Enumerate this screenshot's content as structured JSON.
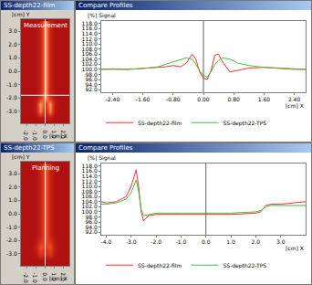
{
  "chart_data": [
    {
      "type": "heatmap",
      "title": "SS-depth22-film",
      "annotations": [
        "Measurement"
      ],
      "xlabel": "[cm] X",
      "ylabel": "[cm] Y",
      "x": [
        -2.5,
        -2.0,
        -1.5,
        -1.0,
        -0.5,
        0.0,
        0.5,
        1.0,
        1.5,
        2.0,
        2.5
      ],
      "y": [
        -3.5,
        -3.0,
        -2.5,
        -2.0,
        -1.5,
        -1.0,
        -0.5,
        0.0,
        0.5,
        1.0,
        1.5,
        2.0,
        2.5,
        3.0,
        3.5
      ],
      "z": [
        [
          0.3,
          0.3,
          0.3,
          0.3,
          0.35,
          0.35,
          0.35,
          0.3,
          0.3,
          0.3,
          0.3
        ],
        [
          0.3,
          0.3,
          0.3,
          0.35,
          0.9,
          0.5,
          0.9,
          0.35,
          0.3,
          0.3,
          0.3
        ],
        [
          0.3,
          0.3,
          0.3,
          0.4,
          1.0,
          0.6,
          1.0,
          0.4,
          0.3,
          0.3,
          0.3
        ],
        [
          0.3,
          0.3,
          0.3,
          0.35,
          0.6,
          1.0,
          0.6,
          0.35,
          0.3,
          0.3,
          0.3
        ],
        [
          0.3,
          0.3,
          0.3,
          0.3,
          0.45,
          1.0,
          0.45,
          0.3,
          0.3,
          0.3,
          0.3
        ],
        [
          0.3,
          0.3,
          0.3,
          0.3,
          0.45,
          1.0,
          0.45,
          0.3,
          0.3,
          0.3,
          0.3
        ],
        [
          0.3,
          0.3,
          0.3,
          0.3,
          0.45,
          1.0,
          0.45,
          0.3,
          0.3,
          0.3,
          0.3
        ],
        [
          0.3,
          0.3,
          0.3,
          0.3,
          0.45,
          1.0,
          0.45,
          0.3,
          0.3,
          0.3,
          0.3
        ],
        [
          0.3,
          0.3,
          0.3,
          0.3,
          0.45,
          1.0,
          0.45,
          0.3,
          0.3,
          0.3,
          0.3
        ],
        [
          0.3,
          0.3,
          0.3,
          0.3,
          0.45,
          1.0,
          0.45,
          0.3,
          0.3,
          0.3,
          0.3
        ],
        [
          0.3,
          0.3,
          0.3,
          0.3,
          0.45,
          1.0,
          0.45,
          0.3,
          0.3,
          0.3,
          0.3
        ],
        [
          0.3,
          0.3,
          0.3,
          0.3,
          0.45,
          1.0,
          0.45,
          0.3,
          0.3,
          0.3,
          0.3
        ],
        [
          0.3,
          0.3,
          0.3,
          0.3,
          0.45,
          1.0,
          0.45,
          0.3,
          0.3,
          0.3,
          0.3
        ],
        [
          0.3,
          0.3,
          0.3,
          0.3,
          0.45,
          1.0,
          0.45,
          0.3,
          0.3,
          0.3,
          0.3
        ],
        [
          0.3,
          0.3,
          0.3,
          0.3,
          0.45,
          1.0,
          0.45,
          0.3,
          0.3,
          0.3,
          0.3
        ]
      ],
      "zlim": [
        0,
        1
      ],
      "crosshair": {
        "x": 0.0,
        "y": -1.8
      },
      "xlim": [
        -2.6,
        2.6
      ],
      "ylim": [
        -3.9,
        3.9
      ],
      "xticks": [
        {
          "value": -2,
          "label": "-2.0"
        },
        {
          "value": -1,
          "label": "-1.0"
        },
        {
          "value": 0,
          "label": "0.0"
        },
        {
          "value": 1,
          "label": "1.0"
        },
        {
          "value": 2,
          "label": "2.0"
        }
      ],
      "yticks": [
        {
          "value": 3,
          "label": "3.0"
        },
        {
          "value": 2,
          "label": "2.0"
        },
        {
          "value": 1,
          "label": "1.0"
        },
        {
          "value": 0,
          "label": "0.0"
        },
        {
          "value": -1,
          "label": "-1.0"
        },
        {
          "value": -2,
          "label": "-2.0"
        },
        {
          "value": -3,
          "label": "-3.0"
        }
      ],
      "grid": false
    },
    {
      "type": "line",
      "title": "Compare Profiles",
      "xlabel": "[cm] X",
      "ylabel": "[%] Signal",
      "x": [
        -2.7,
        -2.4,
        -2.0,
        -1.6,
        -1.2,
        -1.0,
        -0.8,
        -0.6,
        -0.45,
        -0.3,
        -0.2,
        -0.1,
        0.0,
        0.1,
        0.2,
        0.3,
        0.4,
        0.5,
        0.7,
        0.9,
        1.2,
        1.6,
        2.0,
        2.4,
        2.7
      ],
      "series": [
        {
          "name": "SS-depth22-film",
          "color": "#ff3030",
          "values": [
            100.0,
            100.2,
            100.0,
            100.3,
            100.6,
            101.0,
            101.5,
            101.0,
            102.5,
            106.0,
            104.0,
            99.0,
            96.5,
            96.0,
            99.5,
            105.5,
            106.0,
            103.0,
            99.0,
            99.5,
            100.5,
            100.8,
            100.3,
            100.0,
            100.0
          ]
        },
        {
          "name": "SS-depth22-TPS",
          "color": "#40c040",
          "values": [
            100.0,
            100.0,
            100.0,
            100.3,
            101.0,
            102.0,
            103.0,
            104.0,
            104.5,
            104.0,
            102.0,
            99.5,
            97.5,
            97.0,
            99.0,
            102.0,
            103.5,
            104.5,
            104.0,
            102.5,
            101.5,
            100.8,
            100.5,
            100.2,
            100.0
          ]
        }
      ],
      "cursor": 0.0,
      "xlim": [
        -2.7,
        2.7
      ],
      "ylim": [
        91,
        119
      ],
      "xticks": [
        {
          "value": -2.4,
          "label": "-2.40"
        },
        {
          "value": -1.6,
          "label": "-1.60"
        },
        {
          "value": -0.8,
          "label": "-0.80"
        },
        {
          "value": 0,
          "label": "0.00"
        },
        {
          "value": 0.8,
          "label": "0.80"
        },
        {
          "value": 1.6,
          "label": "1.60"
        },
        {
          "value": 2.4,
          "label": "2.40"
        }
      ],
      "yticks": [
        {
          "value": 92,
          "label": "92.0"
        },
        {
          "value": 94,
          "label": "94.0"
        },
        {
          "value": 96,
          "label": "96.0"
        },
        {
          "value": 98,
          "label": "98.0"
        },
        {
          "value": 100,
          "label": "100.0"
        },
        {
          "value": 102,
          "label": "102.0"
        },
        {
          "value": 104,
          "label": "104.0"
        },
        {
          "value": 106,
          "label": "106.0"
        },
        {
          "value": 108,
          "label": "108.0"
        },
        {
          "value": 110,
          "label": "110.0"
        },
        {
          "value": 112,
          "label": "112.0"
        },
        {
          "value": 114,
          "label": "114.0"
        },
        {
          "value": 116,
          "label": "116.0"
        },
        {
          "value": 118,
          "label": "118.0"
        }
      ],
      "grid": false,
      "legend": "bottom"
    },
    {
      "type": "heatmap",
      "title": "SS-depth22-TPS",
      "annotations": [
        "Planning"
      ],
      "xlabel": "[cm] X",
      "ylabel": "[cm] Y",
      "x": [
        -2.5,
        -2.0,
        -1.5,
        -1.0,
        -0.5,
        0.0,
        0.5,
        1.0,
        1.5,
        2.0,
        2.5
      ],
      "y": [
        -3.5,
        -3.0,
        -2.5,
        -2.0,
        -1.5,
        -1.0,
        -0.5,
        0.0,
        0.5,
        1.0,
        1.5,
        2.0,
        2.5,
        3.0,
        3.5
      ],
      "z": [
        [
          0.3,
          0.3,
          0.3,
          0.3,
          0.3,
          0.3,
          0.3,
          0.3,
          0.3,
          0.3,
          0.3
        ],
        [
          0.3,
          0.3,
          0.3,
          0.35,
          0.6,
          0.55,
          0.6,
          0.35,
          0.3,
          0.3,
          0.3
        ],
        [
          0.3,
          0.3,
          0.3,
          0.4,
          0.75,
          0.7,
          0.75,
          0.4,
          0.3,
          0.3,
          0.3
        ],
        [
          0.3,
          0.3,
          0.3,
          0.35,
          0.55,
          0.8,
          0.55,
          0.35,
          0.3,
          0.3,
          0.3
        ],
        [
          0.3,
          0.3,
          0.3,
          0.3,
          0.45,
          0.8,
          0.45,
          0.3,
          0.3,
          0.3,
          0.3
        ],
        [
          0.3,
          0.3,
          0.3,
          0.3,
          0.45,
          0.8,
          0.45,
          0.3,
          0.3,
          0.3,
          0.3
        ],
        [
          0.3,
          0.3,
          0.3,
          0.3,
          0.45,
          0.8,
          0.45,
          0.3,
          0.3,
          0.3,
          0.3
        ],
        [
          0.3,
          0.3,
          0.3,
          0.3,
          0.45,
          0.8,
          0.45,
          0.3,
          0.3,
          0.3,
          0.3
        ],
        [
          0.3,
          0.3,
          0.3,
          0.3,
          0.45,
          0.8,
          0.45,
          0.3,
          0.3,
          0.3,
          0.3
        ],
        [
          0.3,
          0.3,
          0.3,
          0.3,
          0.45,
          0.8,
          0.45,
          0.3,
          0.3,
          0.3,
          0.3
        ],
        [
          0.3,
          0.3,
          0.3,
          0.3,
          0.45,
          0.8,
          0.45,
          0.3,
          0.3,
          0.3,
          0.3
        ],
        [
          0.3,
          0.3,
          0.3,
          0.3,
          0.45,
          0.8,
          0.45,
          0.3,
          0.3,
          0.3,
          0.3
        ],
        [
          0.3,
          0.3,
          0.3,
          0.3,
          0.45,
          0.8,
          0.45,
          0.3,
          0.3,
          0.3,
          0.3
        ],
        [
          0.3,
          0.3,
          0.3,
          0.3,
          0.45,
          0.8,
          0.45,
          0.3,
          0.3,
          0.3,
          0.3
        ],
        [
          0.3,
          0.3,
          0.3,
          0.3,
          0.45,
          0.8,
          0.45,
          0.3,
          0.3,
          0.3,
          0.3
        ]
      ],
      "zlim": [
        0,
        1
      ],
      "crosshair": {
        "x": 0.0
      },
      "xlim": [
        -2.6,
        2.6
      ],
      "ylim": [
        -3.9,
        3.9
      ],
      "xticks": [
        {
          "value": -2,
          "label": "-2.0"
        },
        {
          "value": -1,
          "label": "-1.0"
        },
        {
          "value": 0,
          "label": "0.0"
        },
        {
          "value": 1,
          "label": "1.0"
        },
        {
          "value": 2,
          "label": "2.0"
        }
      ],
      "yticks": [
        {
          "value": 3,
          "label": "3.0"
        },
        {
          "value": 2,
          "label": "2.0"
        },
        {
          "value": 1,
          "label": "1.0"
        },
        {
          "value": 0,
          "label": "0.0"
        },
        {
          "value": -1,
          "label": "-1.0"
        },
        {
          "value": -2,
          "label": "-2.0"
        },
        {
          "value": -3,
          "label": "-3.0"
        }
      ],
      "grid": false
    },
    {
      "type": "line",
      "title": "Compare Profiles",
      "xlabel": "[cm] X",
      "ylabel": "[%] Signal",
      "x": [
        -4.2,
        -4.0,
        -3.6,
        -3.2,
        -3.0,
        -2.9,
        -2.8,
        -2.7,
        -2.6,
        -2.5,
        -2.3,
        -2.0,
        -1.0,
        0.0,
        1.0,
        2.0,
        2.2,
        2.4,
        2.6,
        3.0,
        3.5,
        4.0
      ],
      "series": [
        {
          "name": "SS-depth22-film",
          "color": "#ff3030",
          "values": [
            104.0,
            103.5,
            104.0,
            106.0,
            110.0,
            113.0,
            116.5,
            110.0,
            100.0,
            96.5,
            98.5,
            99.0,
            99.0,
            99.0,
            99.0,
            99.5,
            100.0,
            102.5,
            103.0,
            103.0,
            103.5,
            104.0
          ]
        },
        {
          "name": "SS-depth22-TPS",
          "color": "#40c040",
          "values": [
            103.0,
            103.0,
            103.5,
            105.0,
            107.5,
            110.0,
            112.5,
            108.0,
            101.0,
            98.5,
            99.0,
            99.5,
            99.5,
            99.5,
            99.5,
            100.0,
            100.5,
            102.0,
            102.5,
            102.5,
            102.5,
            102.5
          ]
        }
      ],
      "cursor": 0.0,
      "xlim": [
        -4.2,
        4.0
      ],
      "ylim": [
        91,
        119
      ],
      "xticks": [
        {
          "value": -4,
          "label": "-4.0"
        },
        {
          "value": -3,
          "label": "-3.0"
        },
        {
          "value": -2,
          "label": "-2.0"
        },
        {
          "value": -1,
          "label": "-1.0"
        },
        {
          "value": 0,
          "label": "0.0"
        },
        {
          "value": 1,
          "label": "1.0"
        },
        {
          "value": 2,
          "label": "2.0"
        },
        {
          "value": 3,
          "label": "3.0"
        }
      ],
      "yticks": [
        {
          "value": 92,
          "label": "92.0"
        },
        {
          "value": 94,
          "label": "94.0"
        },
        {
          "value": 96,
          "label": "96.0"
        },
        {
          "value": 98,
          "label": "98.0"
        },
        {
          "value": 100,
          "label": "100.0"
        },
        {
          "value": 102,
          "label": "102.0"
        },
        {
          "value": 104,
          "label": "104.0"
        },
        {
          "value": 106,
          "label": "106.0"
        },
        {
          "value": 108,
          "label": "108.0"
        },
        {
          "value": 110,
          "label": "110.0"
        },
        {
          "value": 112,
          "label": "112.0"
        },
        {
          "value": 114,
          "label": "114.0"
        },
        {
          "value": 116,
          "label": "116.0"
        },
        {
          "value": 118,
          "label": "118.0"
        }
      ],
      "grid": false,
      "legend": "bottom"
    }
  ]
}
